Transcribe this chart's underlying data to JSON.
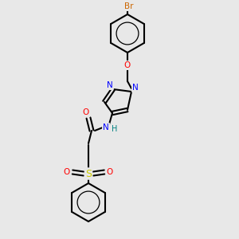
{
  "bg_color": "#e8e8e8",
  "bond_color": "#000000",
  "bond_width": 1.5,
  "figsize": [
    3.0,
    3.0
  ],
  "dpi": 100,
  "atom_colors": {
    "Br": "#cc6600",
    "O": "#ff0000",
    "N": "#0000ff",
    "NH_N": "#0000ff",
    "NH_H": "#008080",
    "S": "#cccc00",
    "C": "#000000"
  },
  "scale": 1.0
}
